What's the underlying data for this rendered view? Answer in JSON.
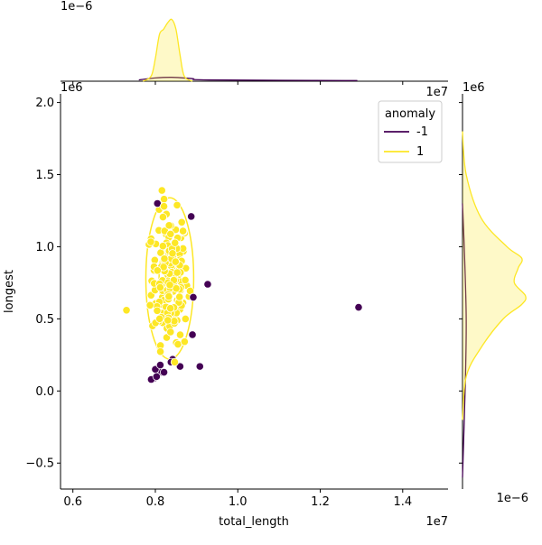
{
  "chart_data": {
    "type": "scatter",
    "x_offset_label": "1e7",
    "y_offset_label": "1e6",
    "xlabel": "total_length",
    "ylabel": "longest",
    "xlim": [
      5.7,
      15.1
    ],
    "ylim": [
      -0.68,
      2.06
    ],
    "x_ticks": [
      {
        "v": 6,
        "label": "0.6"
      },
      {
        "v": 8,
        "label": "0.8"
      },
      {
        "v": 10,
        "label": "1.0"
      },
      {
        "v": 12,
        "label": "1.2"
      },
      {
        "v": 14,
        "label": "1.4"
      }
    ],
    "y_ticks": [
      {
        "v": -0.5,
        "label": "−0.5"
      },
      {
        "v": 0,
        "label": "0.0"
      },
      {
        "v": 0.5,
        "label": "0.5"
      },
      {
        "v": 1.0,
        "label": "1.0"
      },
      {
        "v": 1.5,
        "label": "1.5"
      },
      {
        "v": 2.0,
        "label": "2.0"
      }
    ],
    "legend": {
      "title": "anomaly",
      "placement": "upper-right",
      "entries": [
        {
          "label": "-1",
          "color": "#440154"
        },
        {
          "label": "1",
          "color": "#fde725"
        }
      ]
    },
    "series": [
      {
        "name": "-1",
        "color": "#440154",
        "x": [
          12.93,
          9.27,
          8.87,
          8.92,
          8.9,
          9.08,
          8.6,
          8.42,
          8.38,
          8.15,
          8.0,
          7.98,
          7.9,
          8.03,
          8.12,
          8.21,
          8.05
        ],
        "y": [
          0.58,
          0.74,
          1.21,
          0.65,
          0.39,
          0.17,
          0.17,
          0.22,
          0.2,
          0.13,
          0.15,
          0.09,
          0.08,
          0.1,
          0.18,
          0.13,
          1.3
        ]
      },
      {
        "name": "1",
        "color": "#fde725",
        "x": [
          7.3,
          8.16,
          8.21,
          8.64,
          8.47
        ],
        "y": [
          0.56,
          1.39,
          1.28,
          1.17,
          0.2
        ]
      }
    ],
    "cluster": {
      "series": "1",
      "center": [
        8.35,
        0.78
      ],
      "spread": [
        0.22,
        0.22
      ],
      "count": 200
    },
    "kde_contours": {
      "series": "1",
      "levels": [
        {
          "cx": 8.35,
          "cy": 0.78,
          "rx": 0.58,
          "ry": 0.56
        },
        {
          "cx": 8.35,
          "cy": 0.78,
          "rx": 0.26,
          "ry": 0.25
        }
      ]
    },
    "top_marginal": {
      "offset_label": "1e−6",
      "series": [
        {
          "name": "-1",
          "x": [
            7.6,
            8.0,
            8.4,
            8.9,
            9.3,
            12.9
          ],
          "density": [
            0.02,
            0.05,
            0.06,
            0.04,
            0.02,
            0.01
          ]
        },
        {
          "name": "1",
          "x": [
            7.7,
            7.9,
            8.0,
            8.1,
            8.2,
            8.3,
            8.4,
            8.5,
            8.6,
            8.7,
            8.9
          ],
          "density": [
            0.0,
            0.08,
            0.35,
            0.72,
            0.8,
            0.9,
            0.95,
            0.8,
            0.4,
            0.08,
            0.0
          ]
        }
      ]
    },
    "right_marginal": {
      "offset_label": "1e−6",
      "series": [
        {
          "name": "-1",
          "y": [
            -0.6,
            0.1,
            0.5,
            0.9,
            1.3
          ],
          "density": [
            0.0,
            0.04,
            0.05,
            0.03,
            0.0
          ]
        },
        {
          "name": "1",
          "y": [
            -0.2,
            0.1,
            0.3,
            0.5,
            0.6,
            0.66,
            0.75,
            0.85,
            0.92,
            1.0,
            1.2,
            1.5,
            1.8
          ],
          "density": [
            0.0,
            0.05,
            0.25,
            0.55,
            0.8,
            0.85,
            0.7,
            0.75,
            0.8,
            0.6,
            0.25,
            0.05,
            0.0
          ]
        }
      ]
    }
  }
}
